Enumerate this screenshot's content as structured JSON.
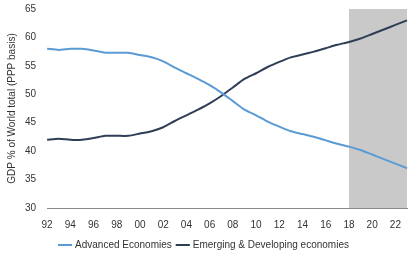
{
  "chart_data": {
    "type": "line",
    "y_label": "GDP % of World total (PPP basis)",
    "categories": [
      "92",
      null,
      "94",
      null,
      "96",
      null,
      "98",
      null,
      "00",
      null,
      "02",
      null,
      "04",
      null,
      "06",
      null,
      "08",
      null,
      "10",
      null,
      "12",
      null,
      "14",
      null,
      "16",
      null,
      "18",
      null,
      "20",
      null,
      "22",
      null
    ],
    "series": [
      {
        "name": "Advanced Economies",
        "color": "#5b9bd5",
        "values": [
          58,
          57.8,
          58,
          58,
          57.7,
          57.3,
          57.3,
          57.3,
          56.9,
          56.5,
          55.8,
          54.7,
          53.7,
          52.7,
          51.6,
          50.3,
          48.8,
          47.3,
          46.3,
          45.2,
          44.3,
          43.5,
          43,
          42.5,
          41.9,
          41.3,
          40.8,
          40.2,
          39.4,
          38.6,
          37.8,
          37
        ]
      },
      {
        "name": "Emerging & Developing economies",
        "color": "#2f3e55",
        "values": [
          42,
          42.2,
          42,
          42,
          42.3,
          42.7,
          42.7,
          42.7,
          43.1,
          43.5,
          44.2,
          45.3,
          46.3,
          47.3,
          48.4,
          49.7,
          51.2,
          52.7,
          53.7,
          54.8,
          55.7,
          56.5,
          57,
          57.5,
          58.1,
          58.7,
          59.2,
          59.8,
          60.6,
          61.4,
          62.2,
          63
        ]
      }
    ],
    "shaded_from": "18",
    "ylim": [
      30,
      65
    ],
    "yticks": [
      30,
      35,
      40,
      45,
      50,
      55,
      60,
      65
    ],
    "grid": false,
    "legend": "bottom"
  }
}
